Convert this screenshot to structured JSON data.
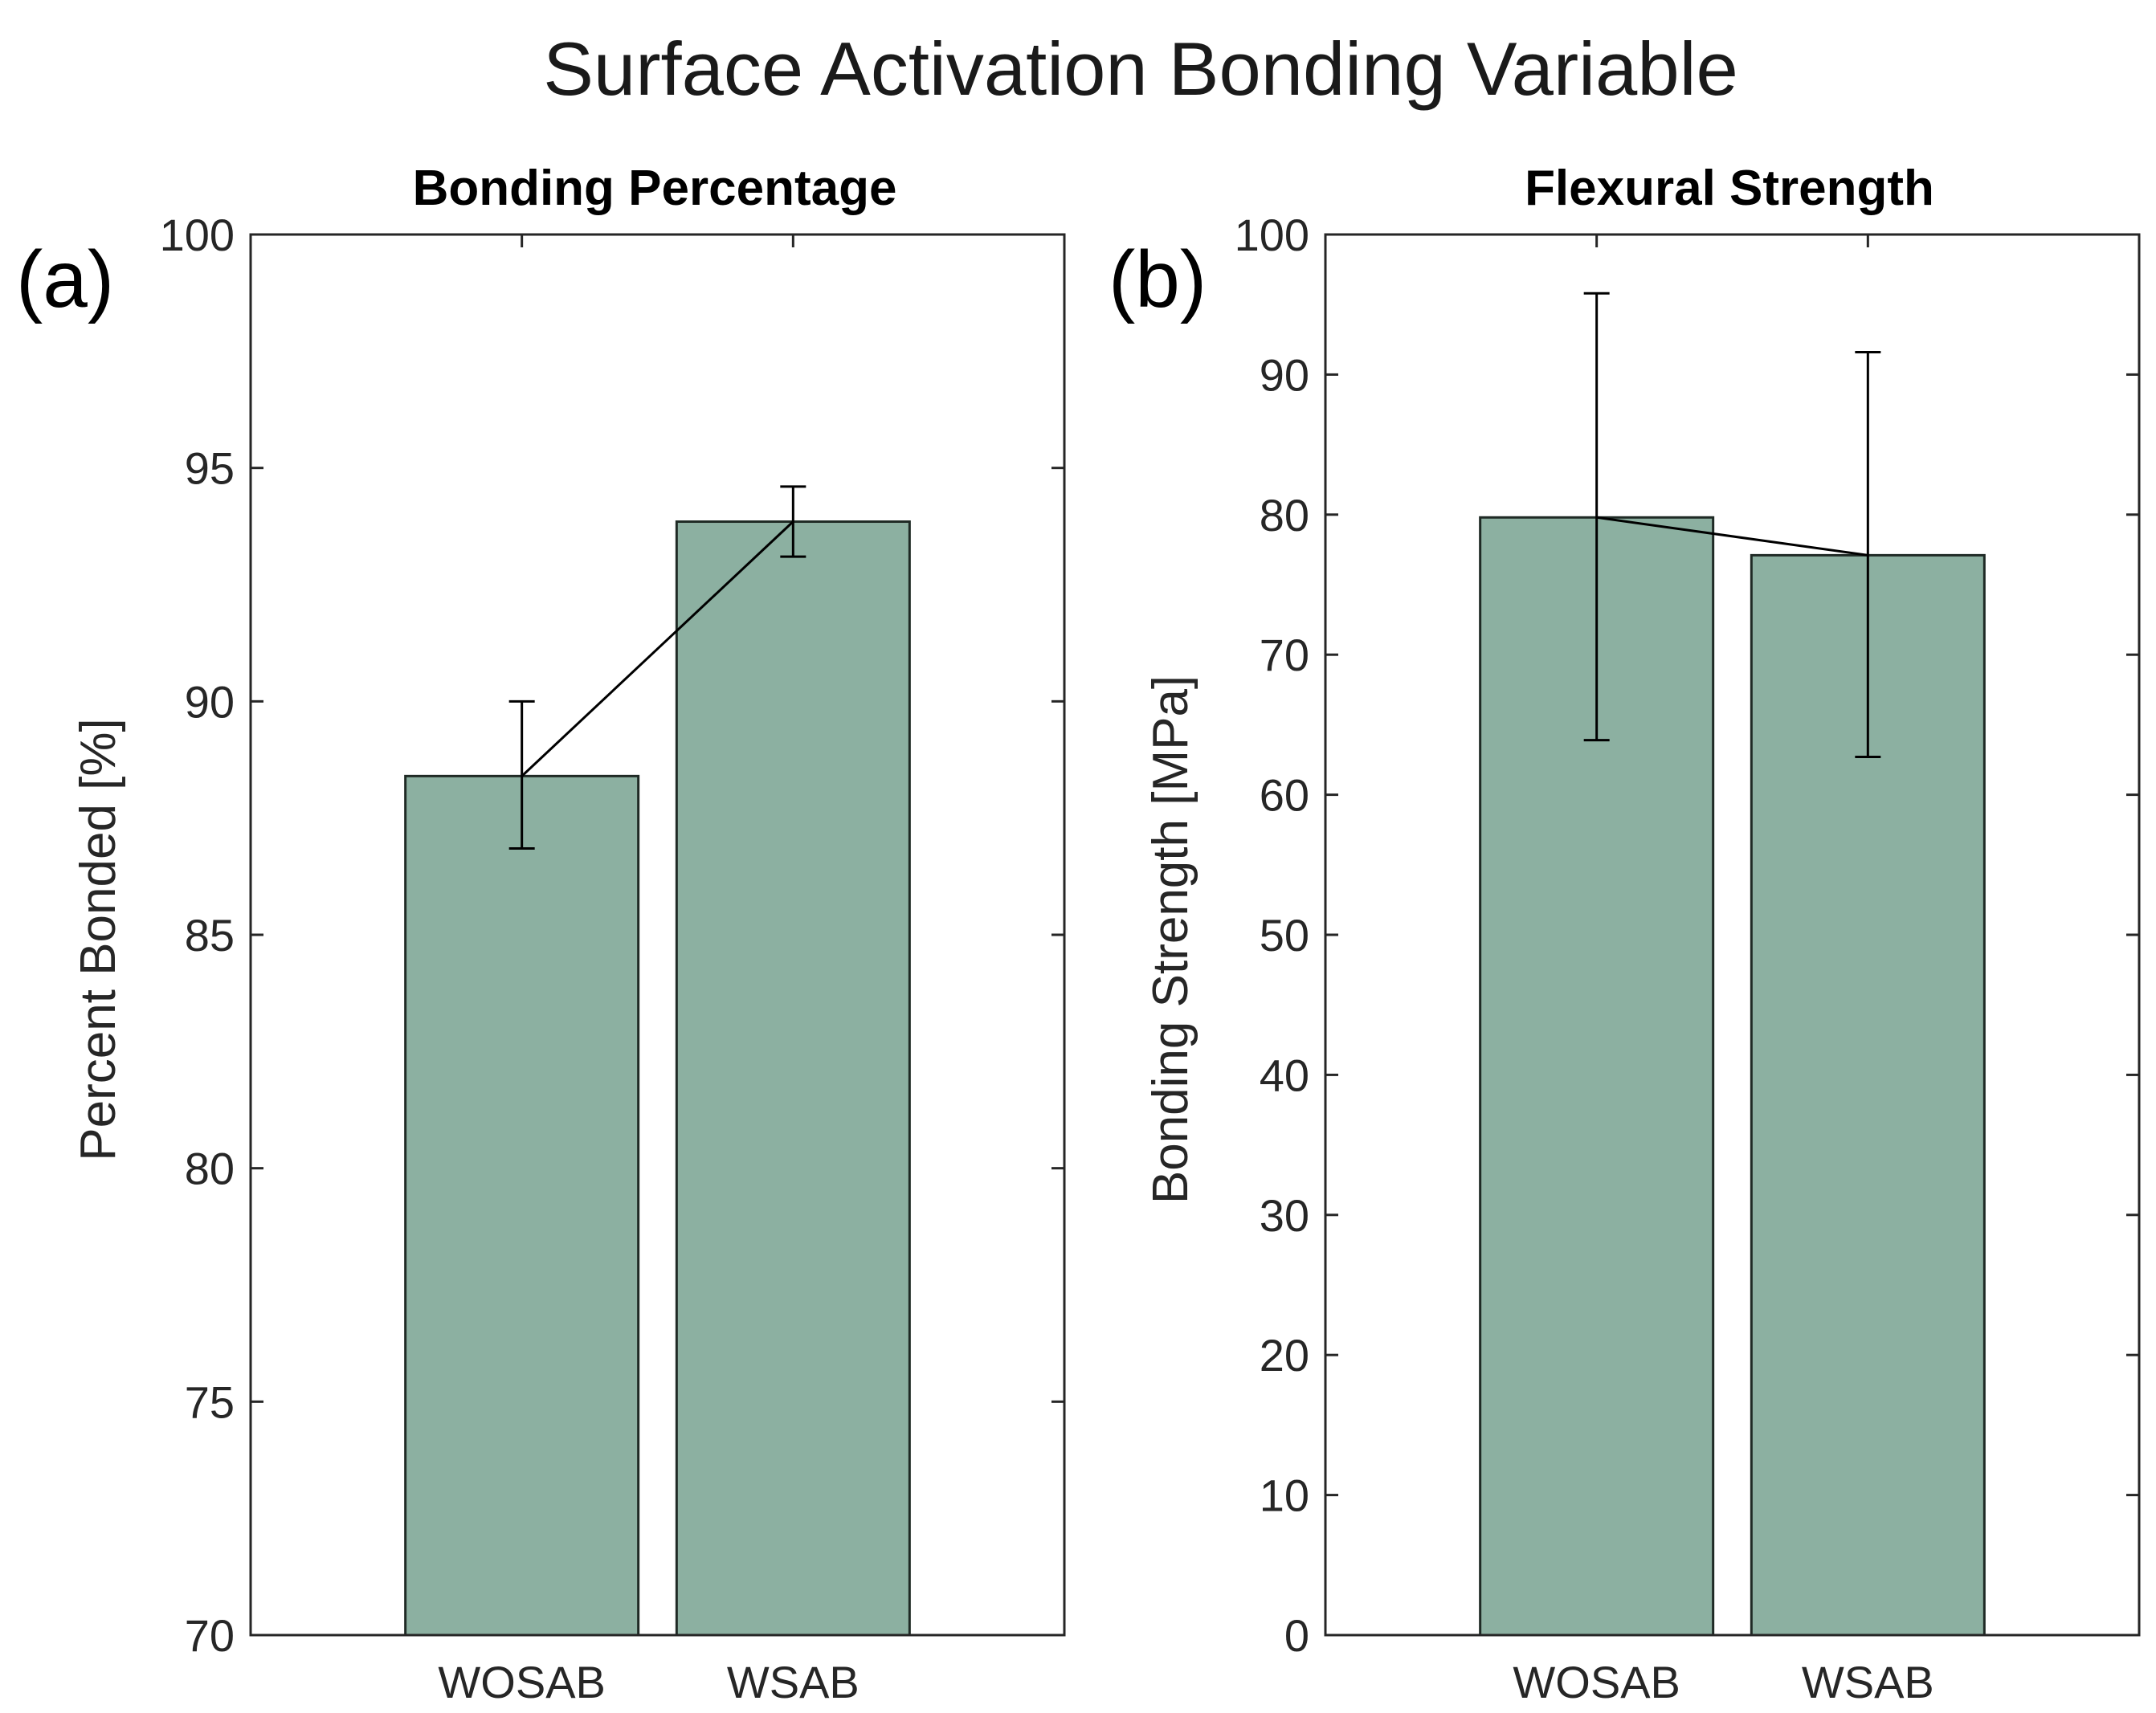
{
  "figure_title": "Surface Activation Bonding Variable",
  "chart_data": [
    {
      "type": "bar",
      "panel_label": "(a)",
      "title": "Bonding Percentage",
      "xlabel": "",
      "ylabel": "Percent Bonded [%]",
      "categories": [
        "WOSAB",
        "WSAB"
      ],
      "values": [
        88.4,
        93.85
      ],
      "error_low": [
        86.85,
        93.1
      ],
      "error_high": [
        90.0,
        94.6
      ],
      "ylim": [
        70,
        100
      ],
      "yticks": [
        70,
        75,
        80,
        85,
        90,
        95,
        100
      ],
      "connecting_line": true,
      "bar_color": "#8cb0a1"
    },
    {
      "type": "bar",
      "panel_label": "(b)",
      "title": "Flexural Strength",
      "xlabel": "",
      "ylabel": "Bonding Strength [MPa]",
      "categories": [
        "WOSAB",
        "WSAB"
      ],
      "values": [
        79.8,
        77.1
      ],
      "error_low": [
        63.9,
        62.7
      ],
      "error_high": [
        95.8,
        91.6
      ],
      "ylim": [
        0,
        100
      ],
      "yticks": [
        0,
        10,
        20,
        30,
        40,
        50,
        60,
        70,
        80,
        90,
        100
      ],
      "connecting_line": true,
      "bar_color": "#8cb0a1"
    }
  ]
}
